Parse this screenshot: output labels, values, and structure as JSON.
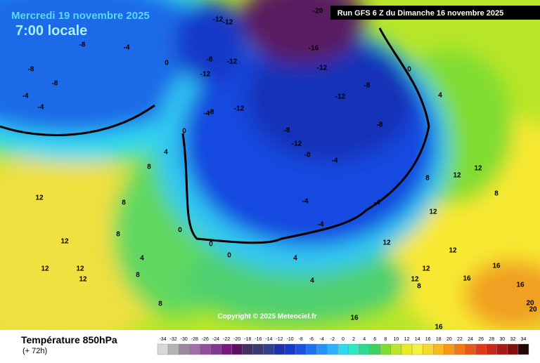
{
  "header": {
    "date": "Mercredi 19 novembre 2025",
    "local_time": "7:00 locale",
    "run": "Run GFS 6 Z du Dimanche 16 novembre 2025"
  },
  "map": {
    "copyright": "Copyright © 2025 Meteociel.fr",
    "isotherm_labels": [
      -20,
      -16,
      -12,
      -12,
      -12,
      -12,
      -12,
      -12,
      -12,
      -12,
      -8,
      -8,
      -8,
      -8,
      -8,
      -8,
      -8,
      -8,
      -8,
      -4,
      -4,
      -4,
      -4,
      -4,
      -4,
      -4,
      -4,
      0,
      0,
      0,
      0,
      0,
      0,
      4,
      4,
      4,
      4,
      4,
      8,
      8,
      8,
      8,
      8,
      8,
      8,
      8,
      12,
      12,
      12,
      12,
      12,
      12,
      12,
      12,
      12,
      12,
      12,
      12,
      16,
      16,
      16,
      16,
      16,
      20,
      20
    ]
  },
  "footer": {
    "parameter": "Température 850hPa",
    "lead": "(+ 72h)"
  },
  "legend": {
    "values": [
      -34,
      -32,
      -30,
      -28,
      -26,
      -24,
      -22,
      -20,
      -18,
      -16,
      -14,
      -12,
      -10,
      -8,
      -6,
      -4,
      -2,
      0,
      2,
      4,
      6,
      8,
      10,
      12,
      14,
      16,
      18,
      20,
      22,
      24,
      26,
      28,
      30,
      32,
      34
    ],
    "colors": [
      "#d8d8d8",
      "#b4b4b4",
      "#9a8aa0",
      "#a070a8",
      "#905098",
      "#803890",
      "#7a1880",
      "#5c1060",
      "#44305c",
      "#3a3a70",
      "#30408a",
      "#2030a8",
      "#1838c8",
      "#1c50e0",
      "#2070f0",
      "#2890f8",
      "#30b0f8",
      "#30d8f0",
      "#30e8c0",
      "#30d890",
      "#40d060",
      "#80dc30",
      "#b8e628",
      "#e8ec28",
      "#f8f040",
      "#f8d830",
      "#f8b820",
      "#f89818",
      "#f07818",
      "#e85818",
      "#e03818",
      "#c82818",
      "#a81818",
      "#801010",
      "#200808"
    ]
  }
}
